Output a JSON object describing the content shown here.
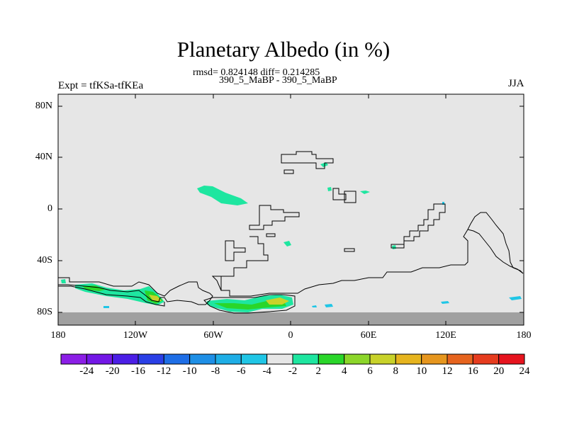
{
  "title": "Planetary Albedo (in %)",
  "stats_line": "rmsd= 0.824148 diff= 0.214285",
  "case_line": "390_5_MaBP - 390_5_MaBP",
  "experiment": "Expt = tfKSa-tfKEa",
  "season": "JJA",
  "lat_labels": [
    "80N",
    "40N",
    "0",
    "40S",
    "80S"
  ],
  "lon_labels": [
    "180",
    "120W",
    "60W",
    "0",
    "60E",
    "120E",
    "180"
  ],
  "colorbar": {
    "labels": [
      "-24",
      "-20",
      "-16",
      "-12",
      "-10",
      "-8",
      "-6",
      "-4",
      "-2",
      "2",
      "4",
      "6",
      "8",
      "10",
      "12",
      "16",
      "20",
      "24"
    ],
    "colors": [
      "#8b1ee6",
      "#7318e6",
      "#4b1ee6",
      "#2a3fe6",
      "#1e6ee6",
      "#1e8fe6",
      "#1eaee6",
      "#20c6e6",
      "#e6e6e6",
      "#1ee6a0",
      "#2ad62a",
      "#8cd62a",
      "#c8d22a",
      "#e6b41e",
      "#e6961e",
      "#e6641e",
      "#e63c1e",
      "#e6141e"
    ]
  },
  "colors": {
    "background": "#e6e6e6",
    "antarctic_band": "#a0a0a0",
    "coastline": "#000000"
  }
}
